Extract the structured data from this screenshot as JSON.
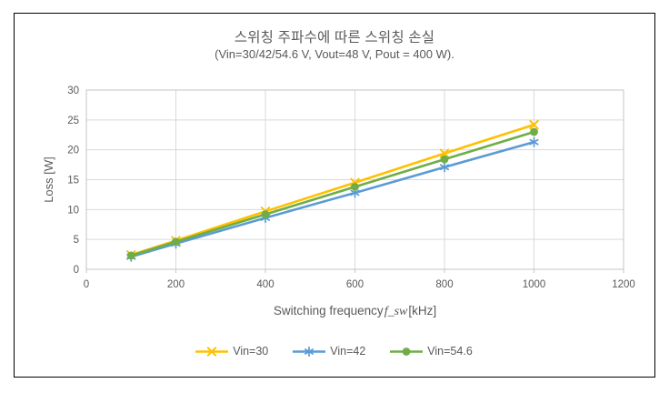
{
  "window": {
    "background": "#FFFFFF",
    "frame_border": "#000000"
  },
  "title": "스위칭 주파수에 따른 스위칭 손실",
  "subtitle": "(Vin=30/42/54.6 V, Vout=48 V, Pout = 400 W).",
  "chart_data": {
    "type": "line",
    "x": [
      100,
      200,
      400,
      600,
      800,
      1000
    ],
    "series": [
      {
        "name": "Vin=30",
        "color": "#FFC000",
        "marker": "x",
        "values": [
          2.4,
          4.8,
          9.7,
          14.5,
          19.4,
          24.2
        ]
      },
      {
        "name": "Vin=42",
        "color": "#5B9BD5",
        "marker": "asterisk",
        "values": [
          2.1,
          4.3,
          8.6,
          12.8,
          17.1,
          21.3
        ]
      },
      {
        "name": "Vin=54.6",
        "color": "#70AD47",
        "marker": "circle",
        "values": [
          2.3,
          4.6,
          9.2,
          13.8,
          18.4,
          23.0
        ]
      }
    ],
    "xlabel": {
      "prefix": "Switching frequency ",
      "italic": "f_sw",
      "suffix": "[kHz]"
    },
    "ylabel": "Loss [W]",
    "xlim": [
      0,
      1200
    ],
    "ylim": [
      0,
      30
    ],
    "x_ticks": [
      0,
      200,
      400,
      600,
      800,
      1000,
      1200
    ],
    "y_ticks": [
      0,
      5,
      10,
      15,
      20,
      25,
      30
    ],
    "grid": true,
    "legend_position": "bottom",
    "text_color": "#595959",
    "grid_color": "#D9D9D9",
    "axis_color": "#C6C6C6"
  }
}
